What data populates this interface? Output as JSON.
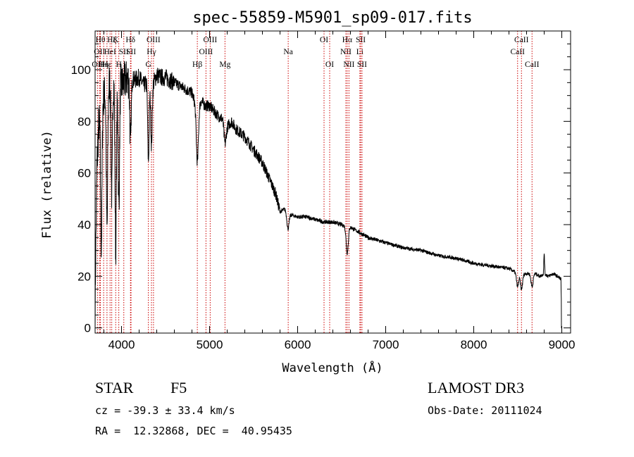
{
  "chart_data": {
    "type": "line",
    "title": "spec-55859-M5901_sp09-017.fits",
    "xlabel": "Wavelength (Å)",
    "ylabel": "Flux (relative)",
    "xlim": [
      3700,
      9100
    ],
    "ylim": [
      -2,
      115
    ],
    "xticks": [
      4000,
      5000,
      6000,
      7000,
      8000,
      9000
    ],
    "yticks": [
      0,
      20,
      40,
      60,
      80,
      100
    ],
    "xtick_labels": [
      "4000",
      "5000",
      "6000",
      "7000",
      "8000",
      "9000"
    ],
    "ytick_labels": [
      "0",
      "20",
      "40",
      "60",
      "80",
      "100"
    ],
    "spectrum": {
      "name": "flux",
      "seed": 7,
      "x": [
        3700,
        3705,
        3720,
        3740,
        3760,
        3780,
        3800,
        3830,
        3860,
        3890,
        3920,
        3950,
        3980,
        4000,
        4050,
        4100,
        4150,
        4200,
        4250,
        4300,
        4340,
        4400,
        4450,
        4500,
        4550,
        4600,
        4700,
        4800,
        4861,
        4900,
        4950,
        5000,
        5050,
        5100,
        5150,
        5200,
        5250,
        5300,
        5400,
        5500,
        5600,
        5700,
        5750,
        5800,
        5850,
        5900,
        6000,
        6100,
        6200,
        6300,
        6400,
        6500,
        6563,
        6600,
        6700,
        6800,
        6900,
        7000,
        7200,
        7400,
        7600,
        7800,
        8000,
        8200,
        8400,
        8500,
        8600,
        8700,
        8750,
        8800,
        8850,
        8900,
        8950,
        8990,
        9000
      ],
      "y": [
        0,
        25,
        62,
        78,
        85,
        88,
        90,
        92,
        95,
        97,
        96,
        95,
        98,
        94,
        96,
        97,
        96,
        97,
        94,
        95,
        93,
        98,
        97,
        97,
        96,
        95,
        93,
        91,
        84,
        88,
        86,
        86,
        84,
        82,
        81,
        78,
        80,
        77,
        74,
        69,
        64,
        56,
        52,
        45,
        46,
        44,
        43,
        43,
        42,
        41,
        41,
        40,
        39,
        39,
        37,
        35,
        34,
        33,
        31,
        30,
        28,
        27,
        25,
        24,
        23,
        21,
        21,
        21,
        20,
        21,
        20,
        21,
        20,
        19,
        0
      ],
      "dips": [
        {
          "x": 3770,
          "depth": 55
        },
        {
          "x": 3835,
          "depth": 55
        },
        {
          "x": 3889,
          "depth": 45
        },
        {
          "x": 3934,
          "depth": 65
        },
        {
          "x": 3970,
          "depth": 50
        },
        {
          "x": 4102,
          "depth": 25
        },
        {
          "x": 4305,
          "depth": 30
        },
        {
          "x": 4340,
          "depth": 22
        },
        {
          "x": 4861,
          "depth": 20
        },
        {
          "x": 5175,
          "depth": 8
        },
        {
          "x": 5890,
          "depth": 6
        },
        {
          "x": 6563,
          "depth": 10
        },
        {
          "x": 8498,
          "depth": 5
        },
        {
          "x": 8542,
          "depth": 6
        },
        {
          "x": 8662,
          "depth": 5
        }
      ],
      "spikes": [
        {
          "x": 8800,
          "height": 8
        }
      ]
    },
    "line_markers": [
      {
        "x": 3727,
        "label": "OII",
        "row": 2
      },
      {
        "x": 3750,
        "label": "OII",
        "row": 1
      },
      {
        "x": 3760,
        "label": "Hθ",
        "row": 0
      },
      {
        "x": 3797,
        "label": "Hη",
        "row": 2
      },
      {
        "x": 3835,
        "label": "Hε",
        "row": 2
      },
      {
        "x": 3870,
        "label": "HeI",
        "row": 1
      },
      {
        "x": 3889,
        "label": "Hζ",
        "row": 0
      },
      {
        "x": 3934,
        "label": "K",
        "row": 0
      },
      {
        "x": 3969,
        "label": "H",
        "row": 2
      },
      {
        "x": 4026,
        "label": "SII",
        "row": 1
      },
      {
        "x": 4102,
        "label": "Hδ",
        "row": 0
      },
      {
        "x": 4108,
        "label": "SII",
        "row": 1
      },
      {
        "x": 4305,
        "label": "G",
        "row": 2
      },
      {
        "x": 4340,
        "label": "Hγ",
        "row": 1
      },
      {
        "x": 4363,
        "label": "OIII",
        "row": 0
      },
      {
        "x": 4861,
        "label": "Hβ",
        "row": 2
      },
      {
        "x": 4959,
        "label": "OIII",
        "row": 1
      },
      {
        "x": 5007,
        "label": "OIII",
        "row": 0
      },
      {
        "x": 5175,
        "label": "Mg",
        "row": 2
      },
      {
        "x": 5893,
        "label": "Na",
        "row": 1
      },
      {
        "x": 6300,
        "label": "OI",
        "row": 0
      },
      {
        "x": 6364,
        "label": "OI",
        "row": 2
      },
      {
        "x": 6548,
        "label": "NII",
        "row": 1
      },
      {
        "x": 6563,
        "label": "Hα",
        "row": 0
      },
      {
        "x": 6583,
        "label": "NII",
        "row": 2
      },
      {
        "x": 6707,
        "label": "Li",
        "row": 1
      },
      {
        "x": 6716,
        "label": "SII",
        "row": 0
      },
      {
        "x": 6731,
        "label": "SII",
        "row": 2
      },
      {
        "x": 8498,
        "label": "CaII",
        "row": 1
      },
      {
        "x": 8542,
        "label": "CaII",
        "row": 0
      },
      {
        "x": 8662,
        "label": "CaII",
        "row": 2
      }
    ]
  },
  "info": {
    "object_class": "STAR",
    "subclass": "F5",
    "survey": "LAMOST DR3",
    "redshift": "cz = -39.3 ± 33.4 km/s",
    "obs_date": "Obs-Date: 20111024",
    "coords": "RA =  12.32868, DEC =  40.95435"
  },
  "colors": {
    "spectrum": "#000000",
    "marker_line": "#cc0000",
    "axis": "#000000"
  }
}
